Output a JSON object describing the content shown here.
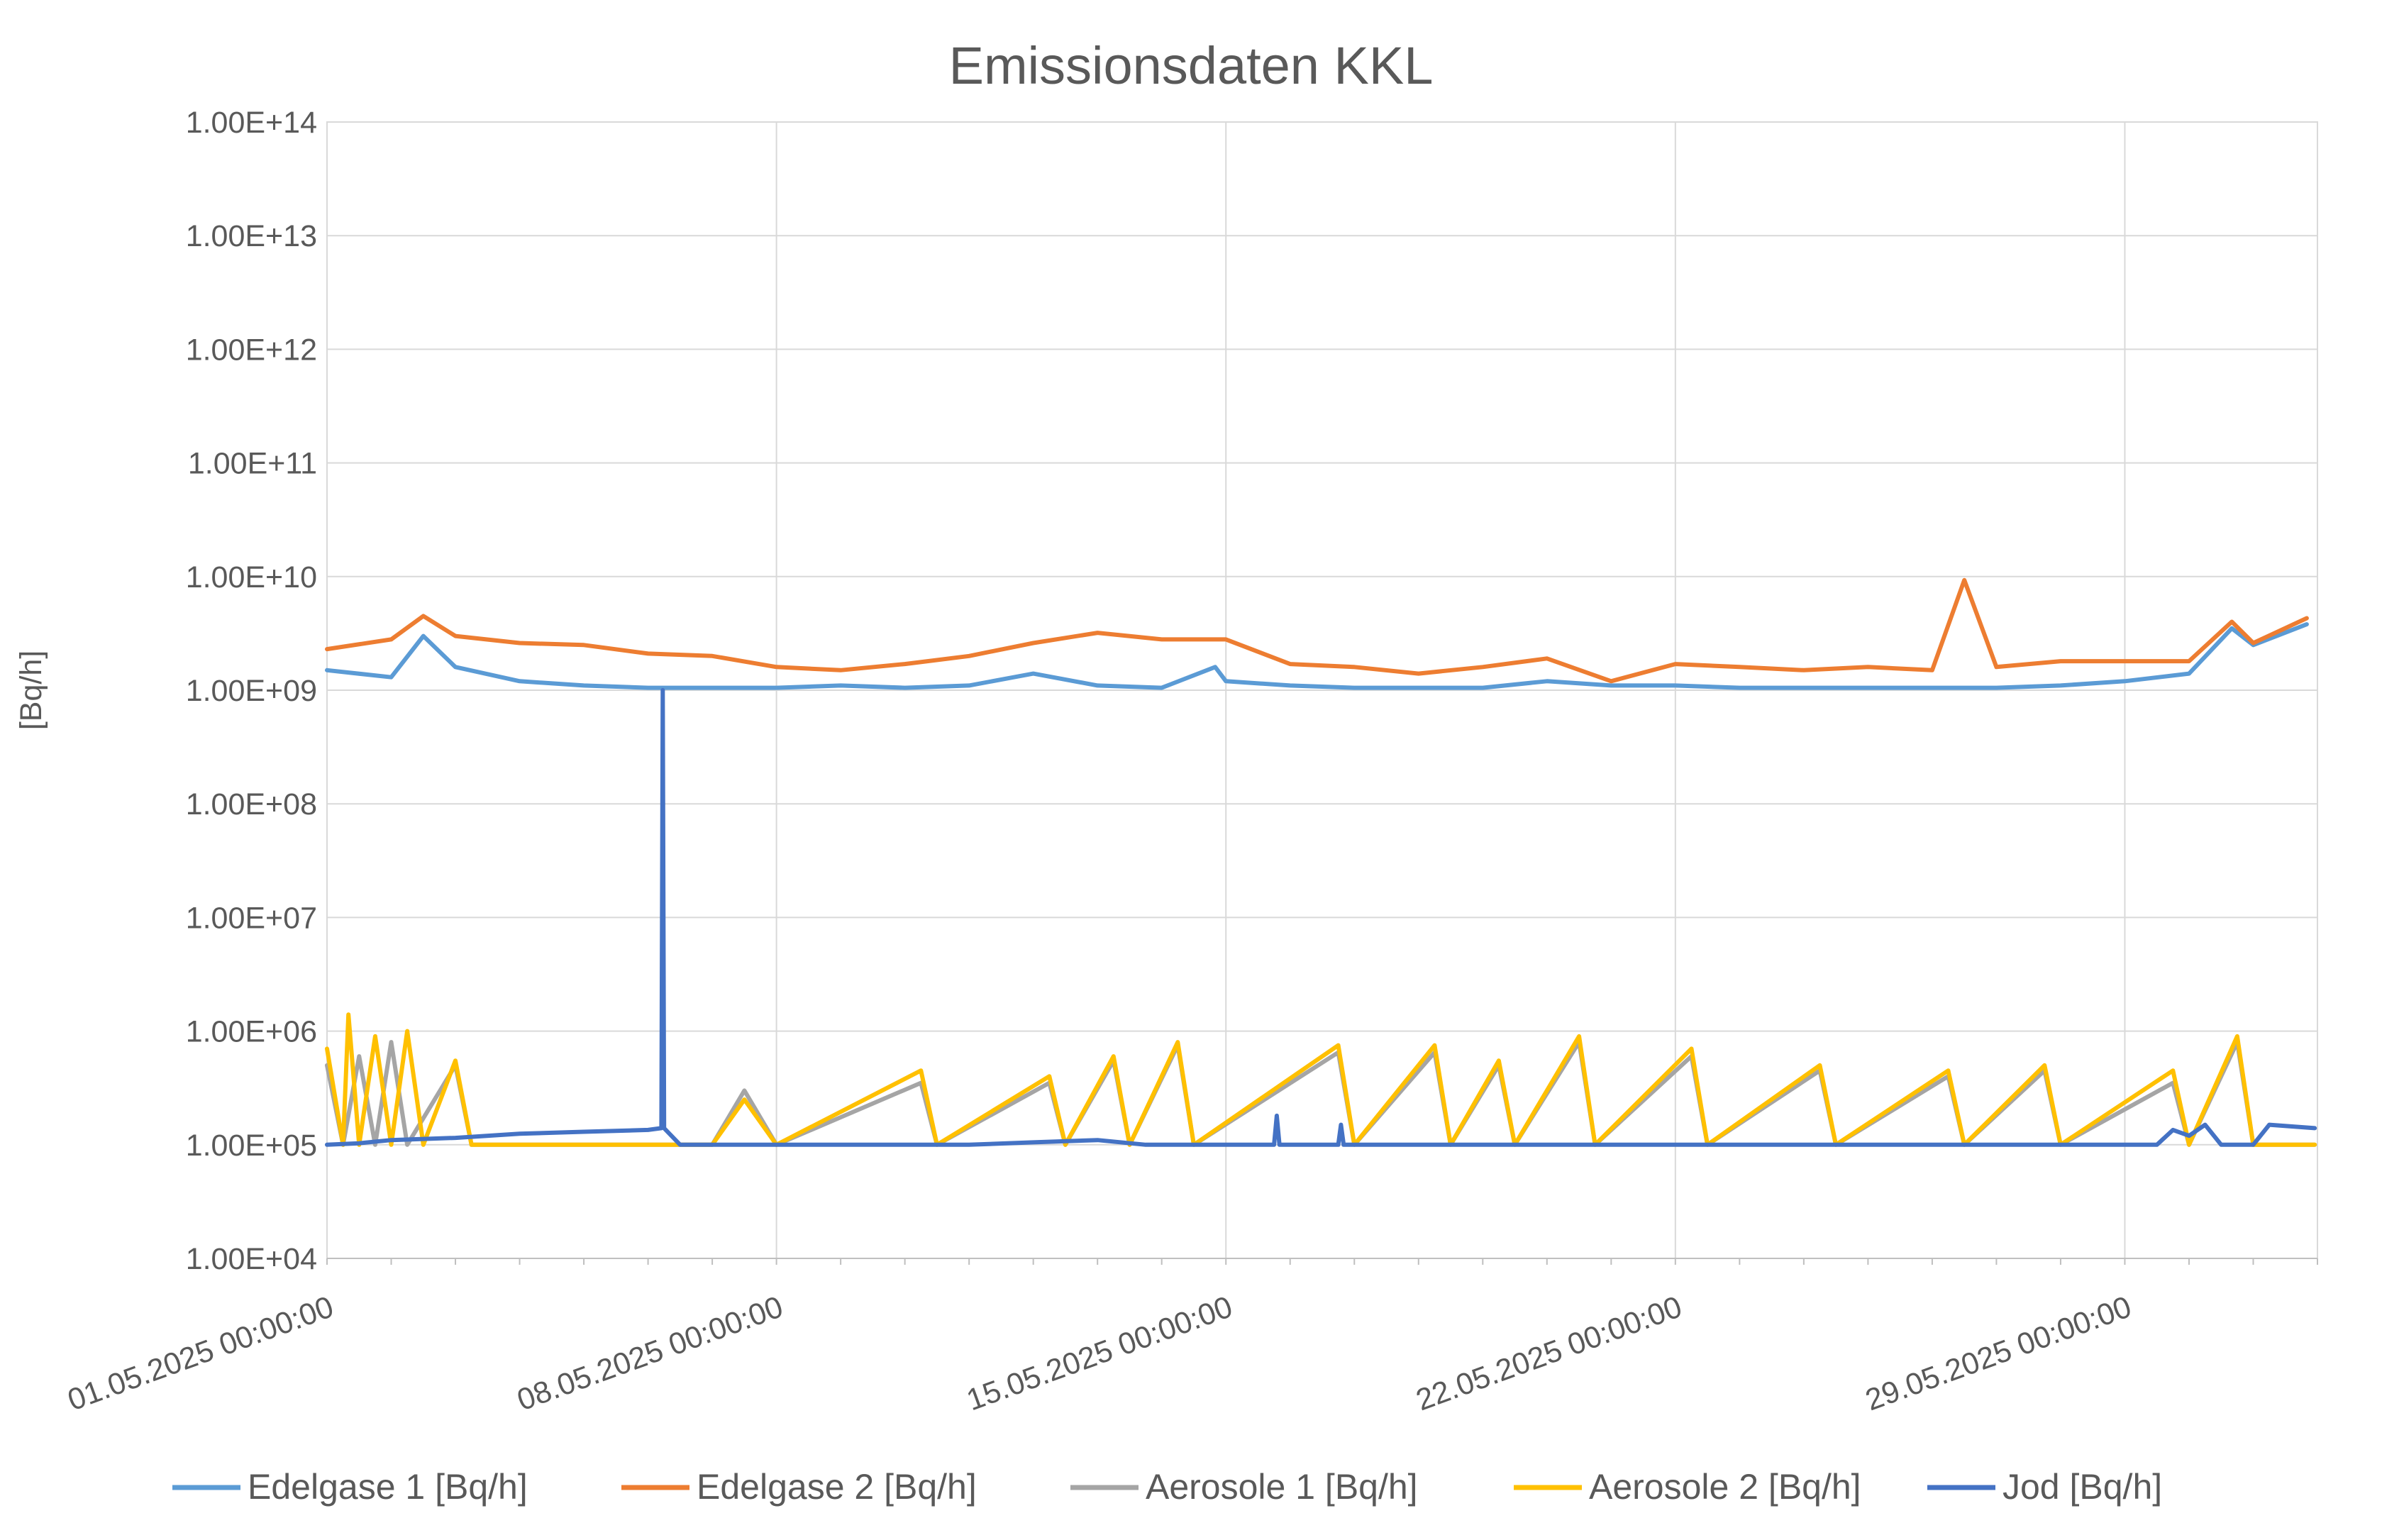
{
  "chart_data": {
    "type": "line",
    "title": "Emissionsdaten KKL",
    "ylabel": "[Bq/h]",
    "xlabel": "",
    "yscale": "log",
    "ylim": [
      10000,
      100000000000000
    ],
    "y_ticks": [
      10000,
      100000,
      1000000,
      10000000,
      100000000,
      1000000000,
      10000000000,
      100000000000,
      1000000000000,
      10000000000000,
      100000000000000
    ],
    "y_tick_labels": [
      "1.00E+04",
      "1.00E+05",
      "1.00E+06",
      "1.00E+07",
      "1.00E+08",
      "1.00E+09",
      "1.00E+10",
      "1.00E+11",
      "1.00E+12",
      "1.00E+13",
      "1.00E+14"
    ],
    "xlim": [
      "01.05.2025 00:00:00",
      "01.06.2025 00:00:00"
    ],
    "x_tick_labels": [
      "01.05.2025 00:00:00",
      "08.05.2025 00:00:00",
      "15.05.2025 00:00:00",
      "22.05.2025 00:00:00",
      "29.05.2025 00:00:00"
    ],
    "grid": true,
    "legend_position": "bottom",
    "series": [
      {
        "name": "Edelgase 1 [Bq/h]",
        "color": "#5B9BD5",
        "points": [
          [
            "01.05.2025",
            1500000000.0
          ],
          [
            "02.05.2025",
            1300000000.0
          ],
          [
            "02.05.2025 12:00",
            3000000000.0
          ],
          [
            "03.05.2025",
            1600000000.0
          ],
          [
            "04.05.2025",
            1200000000.0
          ],
          [
            "05.05.2025",
            1100000000.0
          ],
          [
            "06.05.2025",
            1050000000.0
          ],
          [
            "07.05.2025",
            1050000000.0
          ],
          [
            "08.05.2025",
            1050000000.0
          ],
          [
            "09.05.2025",
            1100000000.0
          ],
          [
            "10.05.2025",
            1050000000.0
          ],
          [
            "11.05.2025",
            1100000000.0
          ],
          [
            "12.05.2025",
            1400000000.0
          ],
          [
            "13.05.2025",
            1100000000.0
          ],
          [
            "14.05.2025",
            1050000000.0
          ],
          [
            "14.05.2025 20:00",
            1600000000.0
          ],
          [
            "15.05.2025",
            1200000000.0
          ],
          [
            "16.05.2025",
            1100000000.0
          ],
          [
            "17.05.2025",
            1050000000.0
          ],
          [
            "18.05.2025",
            1050000000.0
          ],
          [
            "19.05.2025",
            1050000000.0
          ],
          [
            "20.05.2025",
            1200000000.0
          ],
          [
            "21.05.2025",
            1100000000.0
          ],
          [
            "22.05.2025",
            1100000000.0
          ],
          [
            "23.05.2025",
            1050000000.0
          ],
          [
            "24.05.2025",
            1050000000.0
          ],
          [
            "25.05.2025",
            1050000000.0
          ],
          [
            "26.05.2025",
            1050000000.0
          ],
          [
            "27.05.2025",
            1050000000.0
          ],
          [
            "28.05.2025",
            1100000000.0
          ],
          [
            "29.05.2025",
            1200000000.0
          ],
          [
            "30.05.2025",
            1400000000.0
          ],
          [
            "30.05.2025 16:00",
            3500000000.0
          ],
          [
            "31.05.2025",
            2500000000.0
          ],
          [
            "31.05.2025 20:00",
            3800000000.0
          ]
        ]
      },
      {
        "name": "Edelgase 2 [Bq/h]",
        "color": "#ED7D31",
        "points": [
          [
            "01.05.2025",
            2300000000.0
          ],
          [
            "02.05.2025",
            2800000000.0
          ],
          [
            "02.05.2025 12:00",
            4500000000.0
          ],
          [
            "03.05.2025",
            3000000000.0
          ],
          [
            "04.05.2025",
            2600000000.0
          ],
          [
            "05.05.2025",
            2500000000.0
          ],
          [
            "06.05.2025",
            2100000000.0
          ],
          [
            "07.05.2025",
            2000000000.0
          ],
          [
            "08.05.2025",
            1600000000.0
          ],
          [
            "09.05.2025",
            1500000000.0
          ],
          [
            "10.05.2025",
            1700000000.0
          ],
          [
            "11.05.2025",
            2000000000.0
          ],
          [
            "12.05.2025",
            2600000000.0
          ],
          [
            "13.05.2025",
            3200000000.0
          ],
          [
            "14.05.2025",
            2800000000.0
          ],
          [
            "15.05.2025",
            2800000000.0
          ],
          [
            "16.05.2025",
            1700000000.0
          ],
          [
            "17.05.2025",
            1600000000.0
          ],
          [
            "18.05.2025",
            1400000000.0
          ],
          [
            "19.05.2025",
            1600000000.0
          ],
          [
            "20.05.2025",
            1900000000.0
          ],
          [
            "21.05.2025",
            1200000000.0
          ],
          [
            "22.05.2025",
            1700000000.0
          ],
          [
            "23.05.2025",
            1600000000.0
          ],
          [
            "24.05.2025",
            1500000000.0
          ],
          [
            "25.05.2025",
            1600000000.0
          ],
          [
            "26.05.2025",
            1500000000.0
          ],
          [
            "26.05.2025 12:00",
            9300000000.0
          ],
          [
            "27.05.2025",
            1600000000.0
          ],
          [
            "28.05.2025",
            1800000000.0
          ],
          [
            "29.05.2025",
            1800000000.0
          ],
          [
            "30.05.2025",
            1800000000.0
          ],
          [
            "30.05.2025 16:00",
            4000000000.0
          ],
          [
            "31.05.2025",
            2600000000.0
          ],
          [
            "31.05.2025 20:00",
            4300000000.0
          ]
        ]
      },
      {
        "name": "Aerosole 1 [Bq/h]",
        "color": "#A5A5A5",
        "points": [
          [
            "01.05.2025",
            500000.0
          ],
          [
            "01.05.2025 06:00",
            100000.0
          ],
          [
            "01.05.2025 12:00",
            600000.0
          ],
          [
            "01.05.2025 18:00",
            100000.0
          ],
          [
            "02.05.2025 00:00",
            800000.0
          ],
          [
            "02.05.2025 06:00",
            100000.0
          ],
          [
            "03.05.2025 00:00",
            500000.0
          ],
          [
            "03.05.2025 06:00",
            100000.0
          ],
          [
            "04.05.2025",
            100000.0
          ],
          [
            "07.05.2025",
            100000.0
          ],
          [
            "07.05.2025 12:00",
            300000.0
          ],
          [
            "08.05.2025",
            100000.0
          ],
          [
            "10.05.2025 06:00",
            350000.0
          ],
          [
            "10.05.2025 12:00",
            100000.0
          ],
          [
            "12.05.2025 06:00",
            350000.0
          ],
          [
            "12.05.2025 12:00",
            100000.0
          ],
          [
            "13.05.2025 06:00",
            550000.0
          ],
          [
            "13.05.2025 12:00",
            100000.0
          ],
          [
            "14.05.2025 06:00",
            750000.0
          ],
          [
            "14.05.2025 12:00",
            100000.0
          ],
          [
            "16.05.2025 18:00",
            650000.0
          ],
          [
            "17.05.2025",
            100000.0
          ],
          [
            "18.05.2025 06:00",
            650000.0
          ],
          [
            "18.05.2025 12:00",
            100000.0
          ],
          [
            "19.05.2025 06:00",
            500000.0
          ],
          [
            "19.05.2025 12:00",
            100000.0
          ],
          [
            "20.05.2025 12:00",
            800000.0
          ],
          [
            "20.05.2025 18:00",
            100000.0
          ],
          [
            "22.05.2025 06:00",
            600000.0
          ],
          [
            "22.05.2025 12:00",
            100000.0
          ],
          [
            "24.05.2025 06:00",
            450000.0
          ],
          [
            "24.05.2025 12:00",
            100000.0
          ],
          [
            "26.05.2025 06:00",
            400000.0
          ],
          [
            "26.05.2025 12:00",
            100000.0
          ],
          [
            "27.05.2025 18:00",
            450000.0
          ],
          [
            "28.05.2025",
            100000.0
          ],
          [
            "29.05.2025 18:00",
            350000.0
          ],
          [
            "30.05.2025",
            100000.0
          ],
          [
            "30.05.2025 18:00",
            800000.0
          ],
          [
            "31.05.2025",
            100000.0
          ],
          [
            "31.05.2025 23:00",
            100000.0
          ]
        ]
      },
      {
        "name": "Aerosole 2 [Bq/h]",
        "color": "#FFC000",
        "points": [
          [
            "01.05.2025",
            700000.0
          ],
          [
            "01.05.2025 06:00",
            100000.0
          ],
          [
            "01.05.2025 08:00",
            1400000.0
          ],
          [
            "01.05.2025 12:00",
            100000.0
          ],
          [
            "01.05.2025 18:00",
            900000.0
          ],
          [
            "02.05.2025",
            100000.0
          ],
          [
            "02.05.2025 06:00",
            1000000.0
          ],
          [
            "02.05.2025 12:00",
            100000.0
          ],
          [
            "03.05.2025",
            550000.0
          ],
          [
            "03.05.2025 06:00",
            100000.0
          ],
          [
            "07.05.2025",
            100000.0
          ],
          [
            "07.05.2025 12:00",
            250000.0
          ],
          [
            "08.05.2025",
            100000.0
          ],
          [
            "10.05.2025 06:00",
            450000.0
          ],
          [
            "10.05.2025 12:00",
            100000.0
          ],
          [
            "12.05.2025 06:00",
            400000.0
          ],
          [
            "12.05.2025 12:00",
            100000.0
          ],
          [
            "13.05.2025 06:00",
            600000.0
          ],
          [
            "13.05.2025 12:00",
            100000.0
          ],
          [
            "14.05.2025 06:00",
            800000.0
          ],
          [
            "14.05.2025 12:00",
            100000.0
          ],
          [
            "16.05.2025 18:00",
            750000.0
          ],
          [
            "17.05.2025",
            100000.0
          ],
          [
            "18.05.2025 06:00",
            750000.0
          ],
          [
            "18.05.2025 12:00",
            100000.0
          ],
          [
            "19.05.2025 06:00",
            550000.0
          ],
          [
            "19.05.2025 12:00",
            100000.0
          ],
          [
            "20.05.2025 12:00",
            900000.0
          ],
          [
            "20.05.2025 18:00",
            100000.0
          ],
          [
            "22.05.2025 06:00",
            700000.0
          ],
          [
            "22.05.2025 12:00",
            100000.0
          ],
          [
            "24.05.2025 06:00",
            500000.0
          ],
          [
            "24.05.2025 12:00",
            100000.0
          ],
          [
            "26.05.2025 06:00",
            450000.0
          ],
          [
            "26.05.2025 12:00",
            100000.0
          ],
          [
            "27.05.2025 18:00",
            500000.0
          ],
          [
            "28.05.2025",
            100000.0
          ],
          [
            "29.05.2025 18:00",
            450000.0
          ],
          [
            "30.05.2025",
            100000.0
          ],
          [
            "30.05.2025 18:00",
            900000.0
          ],
          [
            "31.05.2025",
            100000.0
          ],
          [
            "31.05.2025 23:00",
            100000.0
          ]
        ]
      },
      {
        "name": "Jod [Bq/h]",
        "color": "#4472C4",
        "points": [
          [
            "01.05.2025",
            100000.0
          ],
          [
            "01.05.2025 12:00",
            103000.0
          ],
          [
            "02.05.2025",
            110000.0
          ],
          [
            "03.05.2025",
            115000.0
          ],
          [
            "04.05.2025",
            125000.0
          ],
          [
            "05.05.2025",
            130000.0
          ],
          [
            "06.05.2025",
            135000.0
          ],
          [
            "06.05.2025 05:00",
            140000.0
          ],
          [
            "06.05.2025 05:30",
            1000000000.0
          ],
          [
            "06.05.2025 06:00",
            140000.0
          ],
          [
            "06.05.2025 12:00",
            100000.0
          ],
          [
            "08.05.2025",
            100000.0
          ],
          [
            "11.05.2025",
            100000.0
          ],
          [
            "12.05.2025",
            105000.0
          ],
          [
            "13.05.2025",
            110000.0
          ],
          [
            "13.05.2025 18:00",
            100000.0
          ],
          [
            "15.05.2025 18:00",
            100000.0
          ],
          [
            "15.05.2025 19:00",
            180000.0
          ],
          [
            "15.05.2025 20:00",
            100000.0
          ],
          [
            "16.05.2025 18:00",
            100000.0
          ],
          [
            "16.05.2025 19:00",
            150000.0
          ],
          [
            "16.05.2025 20:00",
            100000.0
          ],
          [
            "29.05.2025",
            100000.0
          ],
          [
            "29.05.2025 12:00",
            100000.0
          ],
          [
            "29.05.2025 18:00",
            135000.0
          ],
          [
            "30.05.2025",
            120000.0
          ],
          [
            "30.05.2025 06:00",
            150000.0
          ],
          [
            "30.05.2025 12:00",
            100000.0
          ],
          [
            "31.05.2025",
            100000.0
          ],
          [
            "31.05.2025 06:00",
            150000.0
          ],
          [
            "31.05.2025 23:00",
            140000.0
          ]
        ]
      }
    ]
  }
}
